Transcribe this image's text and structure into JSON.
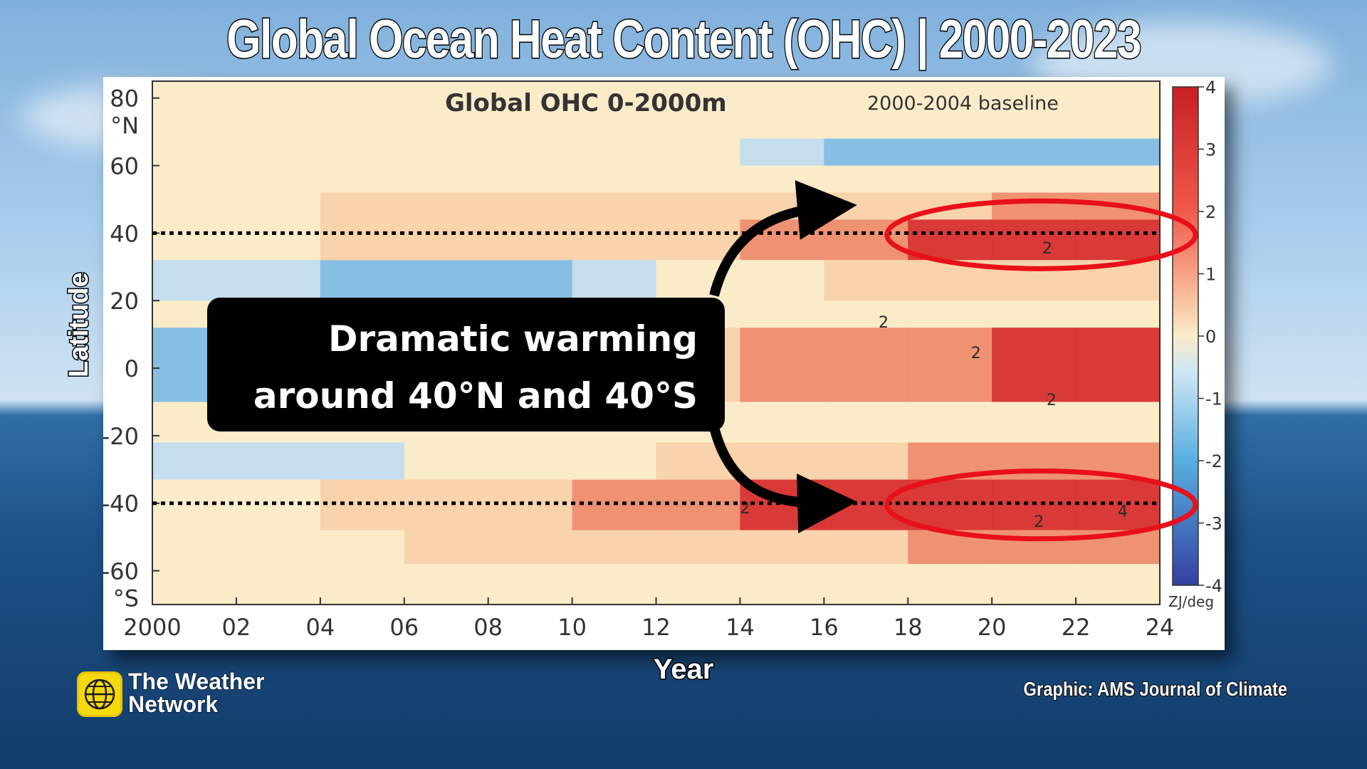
{
  "title": "Global Ocean Heat Content (OHC) | 2000-2023",
  "axis_labels": {
    "y": "Latitude",
    "x": "Year"
  },
  "callout": {
    "line1": "Dramatic warming",
    "line2": "around 40°N and 40°S"
  },
  "branding": {
    "logo_line1": "The Weather",
    "logo_line2": "Network",
    "credit": "Graphic: AMS Journal of Climate"
  },
  "colors": {
    "warm_dark": "#d62a2a",
    "warm_mid": "#ee8a6a",
    "warm_light": "#f8d0a8",
    "neutral": "#fbecc9",
    "cool_light": "#bfdcf0",
    "cool_mid": "#7dbbe6",
    "cool_dark": "#3e6fb8",
    "highlight": "#e8101a"
  },
  "chart_data": {
    "type": "heatmap",
    "title": "Global OHC 0-2000m",
    "subtitle": "2000-2004 baseline",
    "x_ticks": [
      "2000",
      "02",
      "04",
      "06",
      "08",
      "10",
      "12",
      "14",
      "16",
      "18",
      "20",
      "22",
      "24"
    ],
    "x_range": [
      2000,
      2024
    ],
    "y_ticks": [
      {
        "value": 80,
        "lines": [
          "80",
          "°N"
        ]
      },
      {
        "value": 60,
        "lines": [
          "60"
        ]
      },
      {
        "value": 40,
        "lines": [
          "40"
        ]
      },
      {
        "value": 20,
        "lines": [
          "20"
        ]
      },
      {
        "value": 0,
        "lines": [
          "0"
        ]
      },
      {
        "value": -20,
        "lines": [
          "-20"
        ]
      },
      {
        "value": -40,
        "lines": [
          "-40"
        ]
      },
      {
        "value": -60,
        "lines": [
          "-60",
          "°S"
        ]
      }
    ],
    "y_range": [
      -70,
      85
    ],
    "colorbar": {
      "ticks": [
        "4",
        "3",
        "2",
        "1",
        "0",
        "-1",
        "-2",
        "-3",
        "-4"
      ],
      "range": [
        -4,
        4
      ],
      "unit": "ZJ/deg"
    },
    "reference_lines": [
      40,
      -40
    ],
    "highlighted_regions": [
      {
        "label": "40°N band",
        "x_range": [
          2017.5,
          2024
        ],
        "y_range": [
          32,
          47
        ]
      },
      {
        "label": "40°S band",
        "x_range": [
          2017.5,
          2024
        ],
        "y_range": [
          -48,
          -33
        ]
      }
    ],
    "contour_labels": [
      {
        "text": "2",
        "x": 2021.2,
        "y": 34
      },
      {
        "text": "2",
        "x": 2021,
        "y": -47
      },
      {
        "text": "4",
        "x": 2023,
        "y": -44
      },
      {
        "text": "2",
        "x": 2017.3,
        "y": 12
      },
      {
        "text": "2",
        "x": 2019.5,
        "y": 3
      },
      {
        "text": "2",
        "x": 2021.3,
        "y": -11
      },
      {
        "text": "2",
        "x": 2014,
        "y": -43
      }
    ],
    "bands": [
      {
        "lat": [
          44,
          52
        ],
        "values": [
          0.3,
          0.3,
          0.4,
          0.5,
          0.5,
          0.6,
          0.6,
          0.7,
          0.8,
          0.9,
          1.2,
          1.3
        ]
      },
      {
        "lat": [
          32,
          44
        ],
        "values": [
          0.2,
          0.3,
          0.5,
          0.6,
          0.8,
          0.9,
          1.0,
          1.3,
          1.6,
          2.4,
          2.8,
          3.0
        ]
      },
      {
        "lat": [
          20,
          32
        ],
        "values": [
          -0.6,
          -0.5,
          -0.8,
          -0.9,
          -0.8,
          -0.4,
          -0.3,
          0.2,
          0.4,
          0.5,
          0.6,
          0.7
        ]
      },
      {
        "lat": [
          -10,
          12
        ],
        "values": [
          -0.7,
          -0.4,
          0.1,
          0.2,
          0.3,
          0.5,
          0.8,
          1.4,
          1.5,
          1.7,
          2.3,
          2.4
        ]
      },
      {
        "lat": [
          -33,
          -22
        ],
        "values": [
          -0.6,
          -0.5,
          -0.4,
          -0.2,
          0.1,
          0.3,
          0.4,
          0.8,
          1.0,
          1.2,
          1.4,
          1.5
        ]
      },
      {
        "lat": [
          -48,
          -33
        ],
        "values": [
          0.2,
          0.3,
          0.5,
          0.8,
          1.0,
          1.2,
          1.6,
          2.2,
          2.5,
          2.7,
          3.0,
          3.3
        ]
      },
      {
        "lat": [
          -58,
          -48
        ],
        "values": [
          0.1,
          0.2,
          0.2,
          0.4,
          0.5,
          0.6,
          0.8,
          1.0,
          1.1,
          1.2,
          1.3,
          1.4
        ]
      },
      {
        "lat": [
          60,
          68
        ],
        "values": [
          -0.3,
          -0.3,
          -0.2,
          -0.2,
          -0.1,
          -0.2,
          -0.3,
          -0.6,
          -0.8,
          -0.8,
          -0.8,
          -0.7
        ]
      }
    ]
  }
}
